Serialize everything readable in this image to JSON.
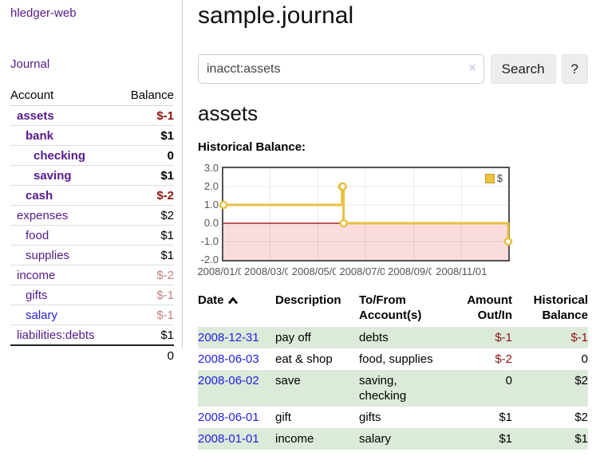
{
  "sidebar": {
    "brand": "hledger-web",
    "journal_link": "Journal",
    "accounts_table": {
      "headers": {
        "account": "Account",
        "balance": "Balance"
      },
      "rows": [
        {
          "name": "assets",
          "balance": "$-1"
        },
        {
          "name": "bank",
          "balance": "$1"
        },
        {
          "name": "checking",
          "balance": "0"
        },
        {
          "name": "saving",
          "balance": "$1"
        },
        {
          "name": "cash",
          "balance": "$-2"
        },
        {
          "name": "expenses",
          "balance": "$2"
        },
        {
          "name": "food",
          "balance": "$1"
        },
        {
          "name": "supplies",
          "balance": "$1"
        },
        {
          "name": "income",
          "balance": "$-2"
        },
        {
          "name": "gifts",
          "balance": "$-1"
        },
        {
          "name": "salary",
          "balance": "$-1"
        },
        {
          "name": "liabilities:debts",
          "balance": "$1"
        }
      ],
      "total": "0"
    }
  },
  "header": {
    "title": "sample.journal"
  },
  "search": {
    "value": "inacct:assets",
    "clear_icon": "×",
    "button": "Search",
    "help_button": "?"
  },
  "account_view": {
    "title": "assets",
    "chart_label": "Historical Balance:"
  },
  "chart_data": {
    "type": "line",
    "title": "Historical Balance",
    "step": true,
    "series": [
      {
        "name": "$",
        "color": "#e6c145",
        "points": [
          [
            "2008-01-01",
            1
          ],
          [
            "2008-06-01",
            2
          ],
          [
            "2008-06-02",
            2
          ],
          [
            "2008-06-03",
            0
          ],
          [
            "2008-12-31",
            -1
          ]
        ]
      }
    ],
    "x_range": [
      "2008-01-01",
      "2008-12-31"
    ],
    "ylim": [
      -2,
      3
    ],
    "x_ticks": [
      "2008/01/01",
      "2008/03/01",
      "2008/05/01",
      "2008/07/01",
      "2008/09/01",
      "2008/11/01"
    ],
    "y_ticks": [
      "3.0",
      "2.0",
      "1.0",
      "0.0",
      "-1.0",
      "-2.0"
    ],
    "grid": true,
    "legend": {
      "label": "$",
      "position": "top-right"
    },
    "negative_region_color": "#fbdcdc",
    "zero_line_color": "#8b0000"
  },
  "transactions": {
    "headers": {
      "date": "Date",
      "description": "Description",
      "tofrom": "To/From Account(s)",
      "amount": "Amount Out/In",
      "balance": "Historical Balance"
    },
    "sort_icon": "up-caret",
    "rows": [
      {
        "date": "2008-12-31",
        "description": "pay off",
        "accounts": "debts",
        "amount": "$-1",
        "balance": "$-1"
      },
      {
        "date": "2008-06-03",
        "description": "eat & shop",
        "accounts": "food, supplies",
        "amount": "$-2",
        "balance": "0"
      },
      {
        "date": "2008-06-02",
        "description": "save",
        "accounts": "saving, checking",
        "amount": "0",
        "balance": "$2"
      },
      {
        "date": "2008-06-01",
        "description": "gift",
        "accounts": "gifts",
        "amount": "$1",
        "balance": "$2"
      },
      {
        "date": "2008-01-01",
        "description": "income",
        "accounts": "salary",
        "amount": "$1",
        "balance": "$1"
      }
    ]
  },
  "colors": {
    "link_purple": "#551a8b",
    "link_blue": "#2222dd",
    "negative_strong": "#8b1414",
    "negative_muted": "#bf8080",
    "row_highlight_green": "#dceada",
    "chart_line_gold": "#e6c145"
  }
}
